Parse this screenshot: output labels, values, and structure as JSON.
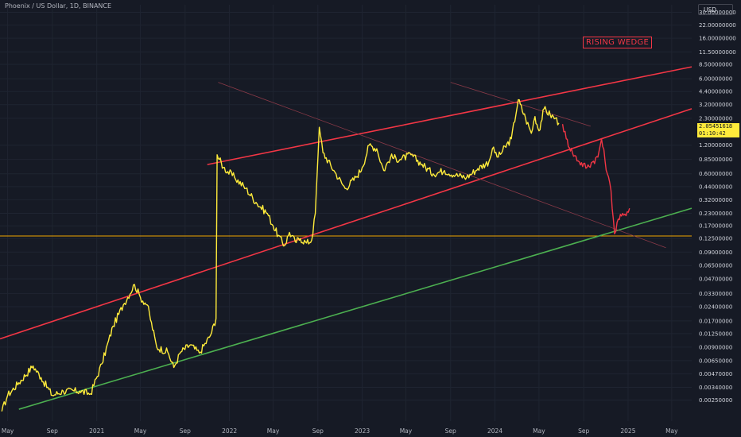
{
  "header": {
    "title": "Phoenix / US Dollar, 1D, BINANCE",
    "currency": "USD"
  },
  "colors": {
    "background": "#161a25",
    "price_line": "#ffeb3b",
    "post_break_line": "#f23645",
    "wedge_line": "#f23645",
    "support_line": "#4caf50",
    "horizontal_level": "#f0a500",
    "channel_line": "#8b3a48",
    "axis_text": "#b2b5be"
  },
  "chart_data": {
    "type": "line",
    "y_scale": "log",
    "x_range": [
      "2020-04-10",
      "2025-06-25"
    ],
    "y_range": [
      0.0015,
      36
    ],
    "x_ticks": [
      {
        "label": "May",
        "date": "2020-05-01"
      },
      {
        "label": "Sep",
        "date": "2020-09-01"
      },
      {
        "label": "2021",
        "date": "2021-01-01"
      },
      {
        "label": "May",
        "date": "2021-05-01"
      },
      {
        "label": "Sep",
        "date": "2021-09-01"
      },
      {
        "label": "2022",
        "date": "2022-01-01"
      },
      {
        "label": "May",
        "date": "2022-05-01"
      },
      {
        "label": "Sep",
        "date": "2022-09-01"
      },
      {
        "label": "2023",
        "date": "2023-01-01"
      },
      {
        "label": "May",
        "date": "2023-05-01"
      },
      {
        "label": "Sep",
        "date": "2023-09-01"
      },
      {
        "label": "2024",
        "date": "2024-01-01"
      },
      {
        "label": "May",
        "date": "2024-05-01"
      },
      {
        "label": "Sep",
        "date": "2024-09-01"
      },
      {
        "label": "2025",
        "date": "2025-01-01"
      },
      {
        "label": "May",
        "date": "2025-05-01"
      }
    ],
    "y_ticks": [
      {
        "label": "30.00000000",
        "value": 30
      },
      {
        "label": "22.00000000",
        "value": 22
      },
      {
        "label": "16.00000000",
        "value": 16
      },
      {
        "label": "11.50000000",
        "value": 11.5
      },
      {
        "label": "8.50000000",
        "value": 8.5
      },
      {
        "label": "6.00000000",
        "value": 6
      },
      {
        "label": "4.40000000",
        "value": 4.4
      },
      {
        "label": "3.20000000",
        "value": 3.2
      },
      {
        "label": "2.30000000",
        "value": 2.3
      },
      {
        "label": "1.20000000",
        "value": 1.2
      },
      {
        "label": "0.85000000",
        "value": 0.85
      },
      {
        "label": "0.60000000",
        "value": 0.6
      },
      {
        "label": "0.44000000",
        "value": 0.44
      },
      {
        "label": "0.32000000",
        "value": 0.32
      },
      {
        "label": "0.23000000",
        "value": 0.23
      },
      {
        "label": "0.17000000",
        "value": 0.17
      },
      {
        "label": "0.12500000",
        "value": 0.125
      },
      {
        "label": "0.09000000",
        "value": 0.09
      },
      {
        "label": "0.06500000",
        "value": 0.065
      },
      {
        "label": "0.04700000",
        "value": 0.047
      },
      {
        "label": "0.03300000",
        "value": 0.033
      },
      {
        "label": "0.02400000",
        "value": 0.024
      },
      {
        "label": "0.01700000",
        "value": 0.017
      },
      {
        "label": "0.01250000",
        "value": 0.0125
      },
      {
        "label": "0.00900000",
        "value": 0.009
      },
      {
        "label": "0.00650000",
        "value": 0.0065
      },
      {
        "label": "0.00470000",
        "value": 0.0047
      },
      {
        "label": "0.00340000",
        "value": 0.0034
      },
      {
        "label": "0.00250000",
        "value": 0.0025
      }
    ],
    "series": [
      {
        "color": "#ffeb3b",
        "points": [
          [
            "2020-04-15",
            0.0019
          ],
          [
            "2020-05-01",
            0.0028
          ],
          [
            "2020-06-01",
            0.0038
          ],
          [
            "2020-07-10",
            0.0057
          ],
          [
            "2020-08-01",
            0.0043
          ],
          [
            "2020-09-01",
            0.0028
          ],
          [
            "2020-10-01",
            0.0031
          ],
          [
            "2020-11-15",
            0.0031
          ],
          [
            "2020-12-15",
            0.0029
          ],
          [
            "2021-01-15",
            0.006
          ],
          [
            "2021-02-15",
            0.015
          ],
          [
            "2021-03-15",
            0.025
          ],
          [
            "2021-04-15",
            0.041
          ],
          [
            "2021-05-01",
            0.03
          ],
          [
            "2021-05-20",
            0.025
          ],
          [
            "2021-06-15",
            0.009
          ],
          [
            "2021-07-15",
            0.008
          ],
          [
            "2021-08-01",
            0.0055
          ],
          [
            "2021-08-20",
            0.008
          ],
          [
            "2021-09-15",
            0.0095
          ],
          [
            "2021-10-10",
            0.0078
          ],
          [
            "2021-11-10",
            0.012
          ],
          [
            "2021-11-25",
            0.018
          ],
          [
            "2021-11-28",
            0.95
          ],
          [
            "2021-12-15",
            0.7
          ],
          [
            "2022-01-15",
            0.55
          ],
          [
            "2022-02-15",
            0.42
          ],
          [
            "2022-03-15",
            0.3
          ],
          [
            "2022-04-15",
            0.23
          ],
          [
            "2022-05-01",
            0.17
          ],
          [
            "2022-05-15",
            0.135
          ],
          [
            "2022-06-01",
            0.105
          ],
          [
            "2022-06-15",
            0.145
          ],
          [
            "2022-07-01",
            0.115
          ],
          [
            "2022-07-15",
            0.125
          ],
          [
            "2022-08-01",
            0.112
          ],
          [
            "2022-08-15",
            0.12
          ],
          [
            "2022-08-25",
            0.23
          ],
          [
            "2022-09-05",
            1.85
          ],
          [
            "2022-09-15",
            1.0
          ],
          [
            "2022-10-15",
            0.65
          ],
          [
            "2022-11-15",
            0.42
          ],
          [
            "2022-12-15",
            0.55
          ],
          [
            "2023-01-01",
            0.7
          ],
          [
            "2023-01-20",
            1.2
          ],
          [
            "2023-02-10",
            1.1
          ],
          [
            "2023-03-01",
            0.65
          ],
          [
            "2023-03-20",
            0.9
          ],
          [
            "2023-04-15",
            0.85
          ],
          [
            "2023-05-15",
            0.95
          ],
          [
            "2023-06-15",
            0.75
          ],
          [
            "2023-07-15",
            0.6
          ],
          [
            "2023-08-15",
            0.65
          ],
          [
            "2023-09-15",
            0.58
          ],
          [
            "2023-10-15",
            0.55
          ],
          [
            "2023-11-15",
            0.68
          ],
          [
            "2023-12-15",
            0.8
          ],
          [
            "2023-12-25",
            1.1
          ],
          [
            "2024-01-10",
            0.9
          ],
          [
            "2024-02-15",
            1.4
          ],
          [
            "2024-03-05",
            3.6
          ],
          [
            "2024-03-25",
            2.3
          ],
          [
            "2024-04-10",
            1.6
          ],
          [
            "2024-04-20",
            2.4
          ],
          [
            "2024-05-01",
            1.7
          ],
          [
            "2024-05-15",
            2.9
          ],
          [
            "2024-06-01",
            2.5
          ],
          [
            "2024-06-15",
            2.3
          ],
          [
            "2024-06-25",
            2.0545
          ]
        ]
      },
      {
        "color": "#f23645",
        "points": [
          [
            "2024-07-05",
            2.0
          ],
          [
            "2024-07-15",
            1.4
          ],
          [
            "2024-08-01",
            1.0
          ],
          [
            "2024-08-20",
            0.8
          ],
          [
            "2024-09-10",
            0.7
          ],
          [
            "2024-09-25",
            0.8
          ],
          [
            "2024-10-10",
            0.9
          ],
          [
            "2024-10-20",
            1.4
          ],
          [
            "2024-11-05",
            0.6
          ],
          [
            "2024-11-15",
            0.4
          ],
          [
            "2024-11-25",
            0.14
          ],
          [
            "2024-12-05",
            0.2
          ],
          [
            "2024-12-20",
            0.22
          ],
          [
            "2025-01-05",
            0.26
          ]
        ]
      }
    ],
    "lines": [
      {
        "color": "#f23645",
        "from": [
          "2021-11-01",
          0.75
        ],
        "to": [
          "2025-06-25",
          8.0
        ]
      },
      {
        "color": "#f23645",
        "from": [
          "2020-04-10",
          0.011
        ],
        "to": [
          "2025-06-25",
          2.9
        ]
      },
      {
        "color": "#4caf50",
        "from": [
          "2020-06-01",
          0.002
        ],
        "to": [
          "2025-06-25",
          0.26
        ]
      },
      {
        "color": "#8b3a48",
        "from": [
          "2021-12-01",
          5.5
        ],
        "to": [
          "2025-04-15",
          0.1
        ]
      },
      {
        "color": "#8b3a48",
        "from": [
          "2023-09-01",
          5.5
        ],
        "to": [
          "2024-09-20",
          1.9
        ]
      }
    ],
    "horizontal_levels": [
      {
        "color": "#f0a500",
        "value": 0.133
      }
    ],
    "annotations": [
      {
        "text": "RISING WEDGE",
        "color": "#f23645"
      }
    ],
    "last_price": {
      "value_label": "2.05451618",
      "countdown": "01:10:42"
    }
  }
}
